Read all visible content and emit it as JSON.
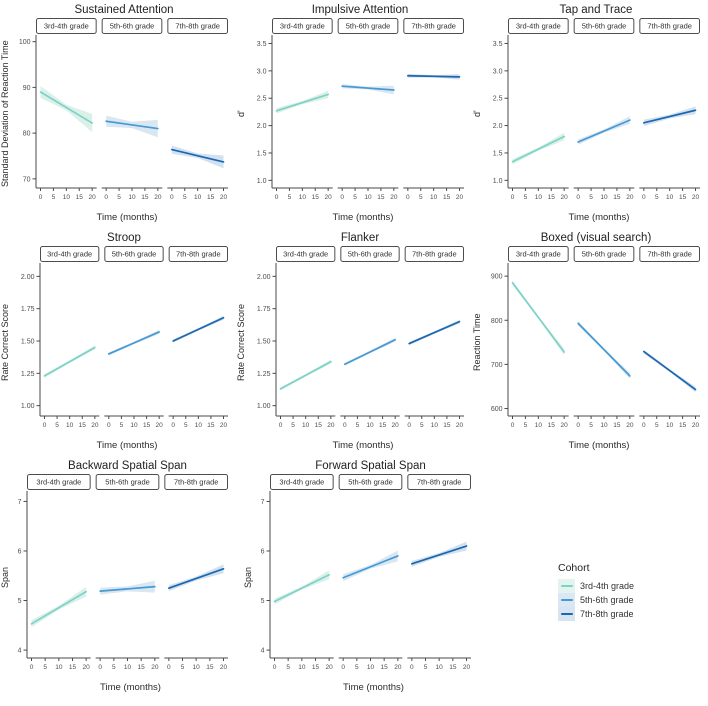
{
  "figure": {
    "facets": [
      "3rd-4th grade",
      "5th-6th grade",
      "7th-8th grade"
    ],
    "x_label": "Time (months)",
    "x_ticks": [
      0,
      5,
      10,
      15,
      20
    ],
    "x_range": [
      0,
      20
    ],
    "legend": {
      "title": "Cohort",
      "items": [
        {
          "label": "3rd-4th grade",
          "color": "#7cd2c6",
          "key_bg": "#e3f3ee"
        },
        {
          "label": "5th-6th grade",
          "color": "#4699d2",
          "key_bg": "#dbe8f4"
        },
        {
          "label": "7th-8th grade",
          "color": "#1a67b0",
          "key_bg": "#d7e5f2"
        }
      ]
    },
    "colors": {
      "axis": "#4a4a4a",
      "tick_text": "#4d4d4d",
      "strip_border": "#4d4d4d",
      "strip_text": "#333333",
      "lines": [
        "#7cd2c6",
        "#4699d2",
        "#1a67b0"
      ],
      "ribbons": [
        "#dcf0ea",
        "#d9e7f3",
        "#d2e1f0"
      ]
    }
  },
  "chart_data": [
    {
      "type": "line",
      "title": "Sustained Attention",
      "ylabel": "Standard Deviation of Reaction Time",
      "xlabel": "Time (months)",
      "x": [
        0,
        20
      ],
      "ylim": [
        68,
        100.8
      ],
      "yticks": [
        70,
        80,
        90,
        100
      ],
      "ytick_labels": [
        "70",
        "80",
        "90",
        "100"
      ],
      "facets": [
        "3rd-4th grade",
        "5th-6th grade",
        "7th-8th grade"
      ],
      "series": [
        {
          "name": "3rd-4th grade",
          "values": [
            89.0,
            82.2
          ],
          "ci": [
            1.3,
            0.6,
            2.0
          ]
        },
        {
          "name": "5th-6th grade",
          "values": [
            82.6,
            81.0
          ],
          "ci": [
            1.2,
            0.7,
            1.9
          ]
        },
        {
          "name": "7th-8th grade",
          "values": [
            76.4,
            73.7
          ],
          "ci": [
            0.9,
            0.5,
            1.4
          ]
        }
      ]
    },
    {
      "type": "line",
      "title": "Impulsive Attention",
      "ylabel": "d'",
      "xlabel": "Time (months)",
      "x": [
        0,
        20
      ],
      "ylim": [
        0.86,
        3.6
      ],
      "yticks": [
        1.0,
        1.5,
        2.0,
        2.5,
        3.0,
        3.5
      ],
      "ytick_labels": [
        "1.0",
        "1.5",
        "2.0",
        "2.5",
        "3.0",
        "3.5"
      ],
      "facets": [
        "3rd-4th grade",
        "5th-6th grade",
        "7th-8th grade"
      ],
      "series": [
        {
          "name": "3rd-4th grade",
          "values": [
            2.27,
            2.57
          ],
          "ci": [
            0.05,
            0.03,
            0.07
          ]
        },
        {
          "name": "5th-6th grade",
          "values": [
            2.72,
            2.65
          ],
          "ci": [
            0.04,
            0.025,
            0.08
          ]
        },
        {
          "name": "7th-8th grade",
          "values": [
            2.91,
            2.89
          ],
          "ci": [
            0.035,
            0.02,
            0.05
          ]
        }
      ]
    },
    {
      "type": "line",
      "title": "Tap and Trace",
      "ylabel": "d'",
      "xlabel": "Time (months)",
      "x": [
        0,
        20
      ],
      "ylim": [
        0.86,
        3.6
      ],
      "yticks": [
        1.0,
        1.5,
        2.0,
        2.5,
        3.0,
        3.5
      ],
      "ytick_labels": [
        "1.0",
        "1.5",
        "2.0",
        "2.5",
        "3.0",
        "3.5"
      ],
      "facets": [
        "3rd-4th grade",
        "5th-6th grade",
        "7th-8th grade"
      ],
      "series": [
        {
          "name": "3rd-4th grade",
          "values": [
            1.34,
            1.8
          ],
          "ci": [
            0.05,
            0.03,
            0.07
          ]
        },
        {
          "name": "5th-6th grade",
          "values": [
            1.7,
            2.1
          ],
          "ci": [
            0.05,
            0.03,
            0.07
          ]
        },
        {
          "name": "7th-8th grade",
          "values": [
            2.05,
            2.28
          ],
          "ci": [
            0.06,
            0.035,
            0.07
          ]
        }
      ]
    },
    {
      "type": "line",
      "title": "Stroop",
      "ylabel": "Rate Correct Score",
      "xlabel": "Time (months)",
      "x": [
        0,
        20
      ],
      "ylim": [
        0.92,
        2.08
      ],
      "yticks": [
        1.0,
        1.25,
        1.5,
        1.75,
        2.0
      ],
      "ytick_labels": [
        "1.00",
        "1.25",
        "1.50",
        "1.75",
        "2.00"
      ],
      "facets": [
        "3rd-4th grade",
        "5th-6th grade",
        "7th-8th grade"
      ],
      "series": [
        {
          "name": "3rd-4th grade",
          "values": [
            1.23,
            1.45
          ],
          "ci": [
            0.012,
            0.01,
            0.015
          ]
        },
        {
          "name": "5th-6th grade",
          "values": [
            1.4,
            1.57
          ],
          "ci": [
            0.012,
            0.01,
            0.015
          ]
        },
        {
          "name": "7th-8th grade",
          "values": [
            1.5,
            1.68
          ],
          "ci": [
            0.012,
            0.01,
            0.015
          ]
        }
      ]
    },
    {
      "type": "line",
      "title": "Flanker",
      "ylabel": "Rate Correct Score",
      "xlabel": "Time (months)",
      "x": [
        0,
        20
      ],
      "ylim": [
        0.92,
        2.08
      ],
      "yticks": [
        1.0,
        1.25,
        1.5,
        1.75,
        2.0
      ],
      "ytick_labels": [
        "1.00",
        "1.25",
        "1.50",
        "1.75",
        "2.00"
      ],
      "facets": [
        "3rd-4th grade",
        "5th-6th grade",
        "7th-8th grade"
      ],
      "series": [
        {
          "name": "3rd-4th grade",
          "values": [
            1.13,
            1.34
          ],
          "ci": [
            0.012,
            0.01,
            0.015
          ]
        },
        {
          "name": "5th-6th grade",
          "values": [
            1.32,
            1.51
          ],
          "ci": [
            0.012,
            0.01,
            0.015
          ]
        },
        {
          "name": "7th-8th grade",
          "values": [
            1.48,
            1.65
          ],
          "ci": [
            0.012,
            0.01,
            0.015
          ]
        }
      ]
    },
    {
      "type": "line",
      "title": "Boxed (visual search)",
      "ylabel": "Reaction Time",
      "xlabel": "Time (months)",
      "x": [
        0,
        20
      ],
      "ylim": [
        583,
        923
      ],
      "yticks": [
        600,
        700,
        800,
        900
      ],
      "ytick_labels": [
        "600",
        "700",
        "800",
        "900"
      ],
      "facets": [
        "3rd-4th grade",
        "5th-6th grade",
        "7th-8th grade"
      ],
      "series": [
        {
          "name": "3rd-4th grade",
          "values": [
            885,
            728
          ],
          "ci": [
            5,
            3,
            7
          ]
        },
        {
          "name": "5th-6th grade",
          "values": [
            793,
            674
          ],
          "ci": [
            5,
            3,
            7
          ]
        },
        {
          "name": "7th-8th grade",
          "values": [
            729,
            643
          ],
          "ci": [
            4,
            3,
            6
          ]
        }
      ]
    },
    {
      "type": "line",
      "title": "Backward Spatial Span",
      "ylabel": "Span",
      "xlabel": "Time (months)",
      "x": [
        0,
        20
      ],
      "ylim": [
        3.84,
        7.15
      ],
      "yticks": [
        4,
        5,
        6,
        7
      ],
      "ytick_labels": [
        "4",
        "5",
        "6",
        "7"
      ],
      "facets": [
        "3rd-4th grade",
        "5th-6th grade",
        "7th-8th grade"
      ],
      "series": [
        {
          "name": "3rd-4th grade",
          "values": [
            4.53,
            5.18
          ],
          "ci": [
            0.07,
            0.04,
            0.1
          ]
        },
        {
          "name": "5th-6th grade",
          "values": [
            5.19,
            5.28
          ],
          "ci": [
            0.07,
            0.05,
            0.12
          ]
        },
        {
          "name": "7th-8th grade",
          "values": [
            5.25,
            5.64
          ],
          "ci": [
            0.06,
            0.04,
            0.09
          ]
        }
      ]
    },
    {
      "type": "line",
      "title": "Forward Spatial Span",
      "ylabel": "Span",
      "xlabel": "Time (months)",
      "x": [
        0,
        20
      ],
      "ylim": [
        3.84,
        7.15
      ],
      "yticks": [
        4,
        5,
        6,
        7
      ],
      "ytick_labels": [
        "4",
        "5",
        "6",
        "7"
      ],
      "facets": [
        "3rd-4th grade",
        "5th-6th grade",
        "7th-8th grade"
      ],
      "series": [
        {
          "name": "3rd-4th grade",
          "values": [
            4.98,
            5.52
          ],
          "ci": [
            0.06,
            0.03,
            0.09
          ]
        },
        {
          "name": "5th-6th grade",
          "values": [
            5.46,
            5.9
          ],
          "ci": [
            0.07,
            0.04,
            0.11
          ]
        },
        {
          "name": "7th-8th grade",
          "values": [
            5.74,
            6.1
          ],
          "ci": [
            0.06,
            0.04,
            0.09
          ]
        }
      ]
    }
  ]
}
